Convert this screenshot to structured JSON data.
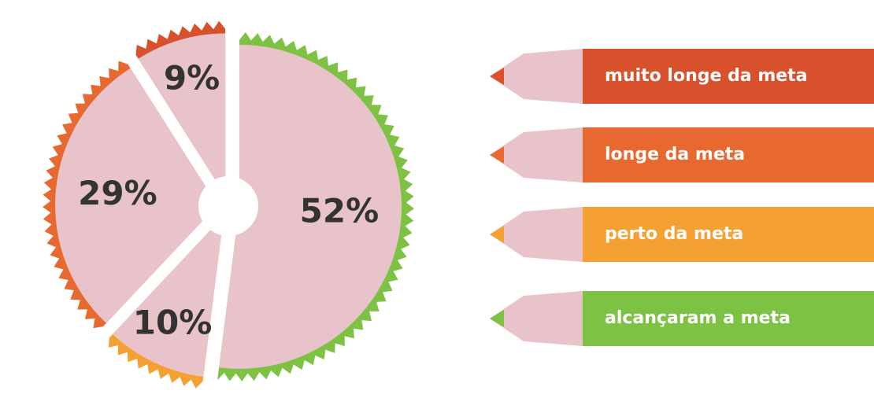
{
  "chart_data": {
    "type": "pie",
    "categories": [
      "muito longe da meta",
      "longe da meta",
      "perto da meta",
      "alcançaram a meta"
    ],
    "values": [
      9,
      29,
      10,
      52
    ],
    "value_labels": [
      "9%",
      "29%",
      "10%",
      "52%"
    ],
    "colors": [
      "#d9512c",
      "#e8692f",
      "#f5a033",
      "#7dc242"
    ]
  }
}
